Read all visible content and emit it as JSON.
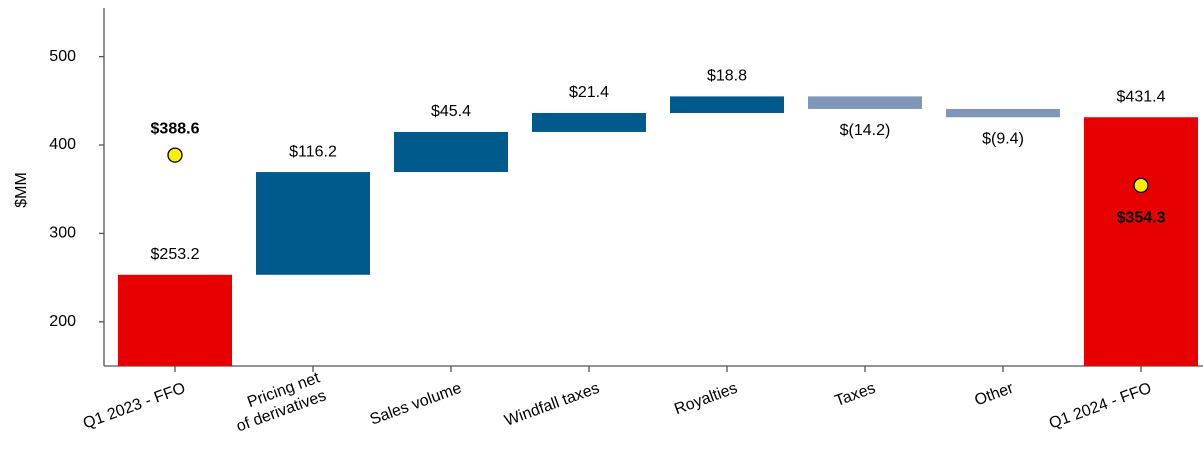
{
  "chart_data": {
    "type": "waterfall",
    "ylabel": "$MM",
    "categories": [
      "Q1 2023 - FFO",
      [
        "Pricing net",
        "of derivatives"
      ],
      "Sales volume",
      "Windfall taxes",
      "Royalties",
      "Taxes",
      "Other",
      "Q1 2024 - FFO"
    ],
    "measures": [
      "total",
      "relative",
      "relative",
      "relative",
      "relative",
      "relative",
      "relative",
      "total"
    ],
    "values": [
      253.2,
      116.2,
      45.4,
      21.4,
      18.8,
      -14.2,
      -9.4,
      431.4
    ],
    "value_labels": [
      "$253.2",
      "$116.2",
      "$45.4",
      "$21.4",
      "$18.8",
      "$(14.2)",
      "$(9.4)",
      "$431.4"
    ],
    "colors": {
      "total": "#e60000",
      "increase": "#005a8c",
      "decrease": "#7f96b8"
    },
    "marker_values": [
      388.6,
      null,
      null,
      null,
      null,
      null,
      null,
      354.3
    ],
    "marker_labels": [
      "$388.6",
      null,
      null,
      null,
      null,
      null,
      null,
      "$354.3"
    ],
    "marker_color": "#ffee00",
    "ylim": [
      150,
      555
    ],
    "yticks": [
      200,
      300,
      400,
      500
    ]
  }
}
